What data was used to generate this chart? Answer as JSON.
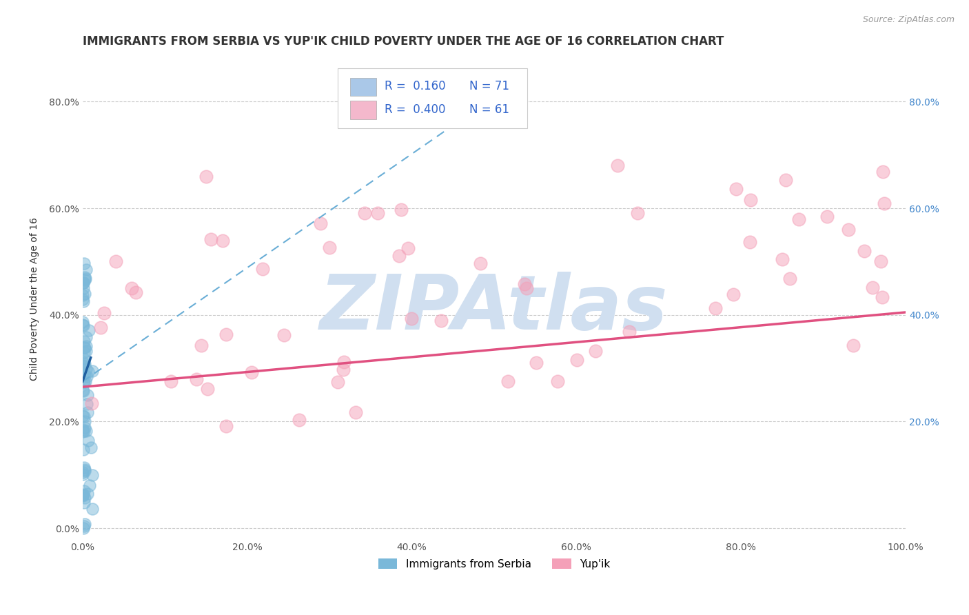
{
  "title": "IMMIGRANTS FROM SERBIA VS YUP'IK CHILD POVERTY UNDER THE AGE OF 16 CORRELATION CHART",
  "source_text": "Source: ZipAtlas.com",
  "ylabel": "Child Poverty Under the Age of 16",
  "xlim": [
    0.0,
    1.0
  ],
  "ylim": [
    -0.02,
    0.88
  ],
  "xticks": [
    0.0,
    0.2,
    0.4,
    0.6,
    0.8,
    1.0
  ],
  "xticklabels": [
    "0.0%",
    "20.0%",
    "40.0%",
    "60.0%",
    "80.0%",
    "100.0%"
  ],
  "yticks": [
    0.0,
    0.2,
    0.4,
    0.6,
    0.8
  ],
  "yticklabels": [
    "0.0%",
    "20.0%",
    "40.0%",
    "60.0%",
    "80.0%"
  ],
  "right_yticks": [
    0.2,
    0.4,
    0.6,
    0.8
  ],
  "right_yticklabels": [
    "20.0%",
    "40.0%",
    "60.0%",
    "80.0%"
  ],
  "blue_color": "#7ab8d9",
  "pink_color": "#f4a0b8",
  "blue_line_color": "#6aaed6",
  "pink_line_color": "#e05080",
  "title_color": "#333333",
  "watermark_color": "#d0dff0",
  "watermark_text": "ZIPAtlas",
  "grid_color": "#cccccc",
  "background_color": "#ffffff",
  "legend_blue_color": "#aac8e8",
  "legend_pink_color": "#f4b8cc",
  "legend_text_color": "#3366cc",
  "title_fontsize": 12,
  "axis_fontsize": 10,
  "tick_fontsize": 10,
  "right_tick_color": "#4488cc"
}
